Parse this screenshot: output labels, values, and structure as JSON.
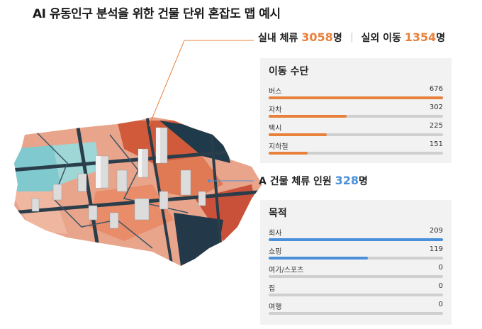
{
  "title": "AI 유동인구 분석을 위한 건물 단위 혼잡도 맵 예시",
  "stats": {
    "indoor_label": "실내 체류",
    "indoor_value": "3058",
    "indoor_unit": "명",
    "outdoor_label": "실외 이동",
    "outdoor_value": "1354",
    "outdoor_unit": "명"
  },
  "transport": {
    "title": "이동 수단",
    "max": 676,
    "items": [
      {
        "label": "버스",
        "value": 676
      },
      {
        "label": "자차",
        "value": 302
      },
      {
        "label": "택시",
        "value": 225
      },
      {
        "label": "지하철",
        "value": 151
      }
    ]
  },
  "building": {
    "label": "A 건물 체류 인원",
    "value": "328",
    "unit": "명"
  },
  "purpose": {
    "title": "목적",
    "max": 209,
    "items": [
      {
        "label": "회사",
        "value": 209
      },
      {
        "label": "쇼핑",
        "value": 119
      },
      {
        "label": "여가/스포츠",
        "value": 0
      },
      {
        "label": "집",
        "value": 0
      },
      {
        "label": "여행",
        "value": 0
      }
    ]
  },
  "colors": {
    "orange": "#e8813c",
    "blue": "#4a90d9",
    "panel_bg": "#f2f2f2",
    "track": "#cfcfcf"
  },
  "map_image": "3d-city-congestion-map"
}
